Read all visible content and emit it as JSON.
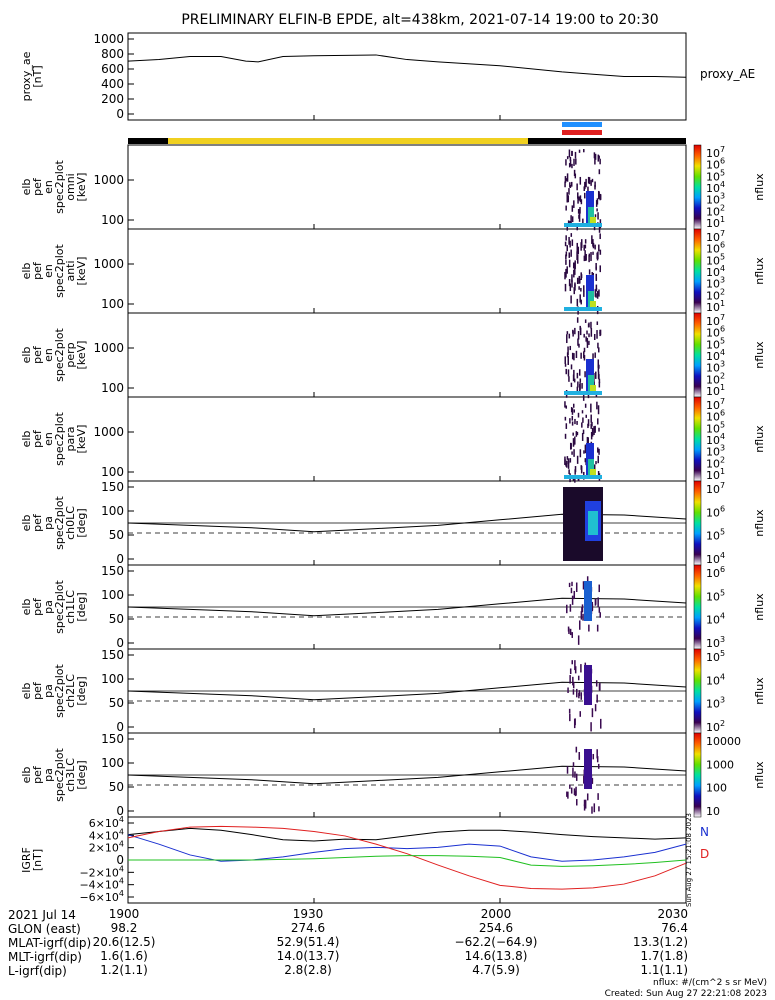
{
  "title": "PRELIMINARY ELFIN-B EPDE, alt=438km, 2021-07-14 19:00 to 20:30",
  "panels": [
    {
      "ylabel": "proxy_ae\n[nT]",
      "legend": "proxy_AE",
      "ticks": [
        "1000",
        "800",
        "600",
        "400",
        "200",
        "0"
      ]
    },
    {
      "ylabel": "elb\npef\nen\nspec2plot\nomni\n[keV]",
      "ticks": [
        "1000",
        "100"
      ],
      "cbar": [
        "10^7",
        "10^6",
        "10^5",
        "10^4",
        "10^3",
        "10^2",
        "10^1"
      ]
    },
    {
      "ylabel": "elb\npef\nen\nspec2plot\nanti\n[keV]",
      "ticks": [
        "1000",
        "100"
      ],
      "cbar": [
        "10^7",
        "10^6",
        "10^5",
        "10^4",
        "10^3",
        "10^2",
        "10^1"
      ]
    },
    {
      "ylabel": "elb\npef\nen\nspec2plot\nperp\n[keV]",
      "ticks": [
        "1000",
        "100"
      ],
      "cbar": [
        "10^7",
        "10^6",
        "10^5",
        "10^4",
        "10^3",
        "10^2",
        "10^1"
      ]
    },
    {
      "ylabel": "elb\npef\nen\nspec2plot\npara\n[keV]",
      "ticks": [
        "1000",
        "100"
      ],
      "cbar": [
        "10^7",
        "10^6",
        "10^5",
        "10^4",
        "10^3",
        "10^2",
        "10^1"
      ]
    },
    {
      "ylabel": "elb\npef\npa\nspec2plot\nch0LC\n[deg]",
      "ticks": [
        "150",
        "100",
        "50",
        "0"
      ],
      "cbar": [
        "10^7",
        "10^6",
        "10^5",
        "10^4"
      ]
    },
    {
      "ylabel": "elb\npef\npa\nspec2plot\nch1LC\n[deg]",
      "ticks": [
        "150",
        "100",
        "50",
        "0"
      ],
      "cbar": [
        "10^6",
        "10^5",
        "10^4",
        "10^3"
      ]
    },
    {
      "ylabel": "elb\npef\npa\nspec2plot\nch2LC\n[deg]",
      "ticks": [
        "150",
        "100",
        "50",
        "0"
      ],
      "cbar": [
        "10^5",
        "10^4",
        "10^3",
        "10^2"
      ]
    },
    {
      "ylabel": "elb\npef\npa\nspec2plot\nch3LC\n[deg]",
      "ticks": [
        "150",
        "100",
        "50",
        "0"
      ],
      "cbar": [
        "10000",
        "1000",
        "100",
        "10"
      ]
    },
    {
      "ylabel": "IGRF\n[nT]",
      "ticks": [
        "6×10^4",
        "4×10^4",
        "2×10^4",
        "0",
        "−2×10^4",
        "−4×10^4",
        "−6×10^4"
      ],
      "legend_n": "N",
      "legend_d": "D"
    }
  ],
  "cbar_label": "nflux",
  "footer": {
    "rows": [
      {
        "label": "2021 Jul 14",
        "values": [
          "1900",
          "1930",
          "2000",
          "2030"
        ]
      },
      {
        "label": "GLON (east)",
        "values": [
          "98.2",
          "274.6",
          "254.6",
          "76.4"
        ]
      },
      {
        "label": "MLAT-igrf(dip)",
        "values": [
          "20.6(12.5)",
          "52.9(51.4)",
          "−62.2(−64.9)",
          "13.3(1.2)"
        ]
      },
      {
        "label": "MLT-igrf(dip)",
        "values": [
          "1.6(1.6)",
          "14.0(13.7)",
          "14.6(13.8)",
          "1.7(1.8)"
        ]
      },
      {
        "label": "L-igrf(dip)",
        "values": [
          "1.2(1.1)",
          "2.8(2.8)",
          "4.7(5.9)",
          "1.1(1.1)"
        ]
      }
    ],
    "note1": "nflux: #/(cm^2 s sr MeV)",
    "note2": "Created: Sun Aug 27 22:21:08 2023",
    "vnote": "Sun Aug 27 15:21:08 2023"
  },
  "chart_data": {
    "type": "line",
    "x_range_hours": [
      "19:00",
      "20:30"
    ],
    "proxy_ae": {
      "name": "proxy_AE",
      "ylim": [
        0,
        1000
      ],
      "t": [
        0,
        5,
        10,
        15,
        19,
        21,
        25,
        30,
        40,
        45,
        50,
        60,
        70,
        75,
        80,
        85,
        90
      ],
      "values": [
        700,
        720,
        760,
        760,
        700,
        690,
        760,
        770,
        780,
        720,
        690,
        640,
        560,
        530,
        500,
        500,
        490
      ]
    },
    "igrf": {
      "ylim": [
        -60000,
        60000
      ],
      "t": [
        0,
        5,
        10,
        15,
        20,
        25,
        30,
        35,
        40,
        45,
        50,
        55,
        60,
        65,
        70,
        75,
        80,
        85,
        90
      ],
      "series": [
        {
          "name": "black",
          "values": [
            40000,
            45000,
            50000,
            47000,
            40000,
            32000,
            30000,
            33000,
            32000,
            38000,
            44000,
            47000,
            47000,
            44000,
            40000,
            37000,
            35000,
            33000,
            35000
          ]
        },
        {
          "name": "blue",
          "values": [
            40000,
            25000,
            8000,
            -2000,
            0,
            5000,
            12000,
            18000,
            20000,
            18000,
            20000,
            25000,
            22000,
            5000,
            -2000,
            0,
            5000,
            12000,
            25000
          ]
        },
        {
          "name": "red",
          "values": [
            35000,
            45000,
            52000,
            53000,
            52000,
            50000,
            45000,
            38000,
            25000,
            10000,
            -8000,
            -25000,
            -40000,
            -45000,
            -46000,
            -44000,
            -38000,
            -25000,
            -5000
          ]
        },
        {
          "name": "green",
          "values": [
            0,
            0,
            0,
            0,
            0,
            1000,
            2000,
            4000,
            6000,
            7000,
            7000,
            6000,
            4000,
            -8000,
            -10000,
            -9000,
            -7000,
            -4000,
            0
          ]
        }
      ]
    },
    "pa_lc": {
      "ylim": [
        0,
        180
      ],
      "lc_upper": 90,
      "lc_lower_dashed": 65
    }
  }
}
